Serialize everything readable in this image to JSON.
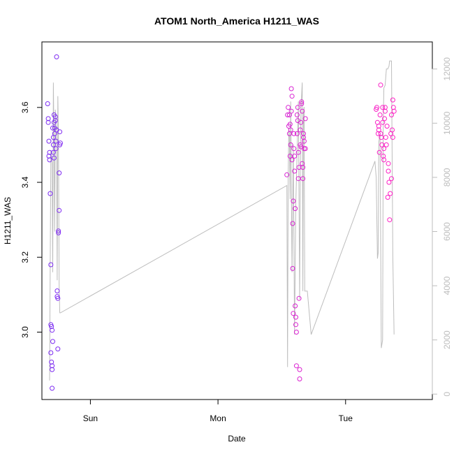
{
  "chart_data": {
    "type": "scatter",
    "title": "ATOM1 North_America H1211_WAS",
    "xlabel": "Date",
    "ylabel": "H1211_WAS",
    "x_unit": "days",
    "xlim": [
      -0.38,
      2.68
    ],
    "ylim": [
      2.82,
      3.775
    ],
    "y2lim": [
      -200,
      13000
    ],
    "x_ticks": [
      {
        "label": "Sun",
        "value": 0
      },
      {
        "label": "Mon",
        "value": 1
      },
      {
        "label": "Tue",
        "value": 2
      }
    ],
    "y_ticks": [
      3.0,
      3.2,
      3.4,
      3.6
    ],
    "y2_ticks": [
      0,
      2000,
      4000,
      6000,
      8000,
      10000,
      12000
    ],
    "grid": false,
    "colors": {
      "start": "#7b2bf3",
      "end": "#ff1fc4",
      "altitude": "#bdbdbd",
      "frame": "#000000"
    },
    "points": [
      [
        -0.335,
        3.61
      ],
      [
        -0.33,
        3.56
      ],
      [
        -0.33,
        3.57
      ],
      [
        -0.325,
        3.47
      ],
      [
        -0.325,
        3.51
      ],
      [
        -0.32,
        3.48
      ],
      [
        -0.32,
        3.46
      ],
      [
        -0.315,
        3.37
      ],
      [
        -0.31,
        3.18
      ],
      [
        -0.31,
        3.02
      ],
      [
        -0.305,
        3.015
      ],
      [
        -0.31,
        2.945
      ],
      [
        -0.305,
        2.92
      ],
      [
        -0.3,
        2.91
      ],
      [
        -0.3,
        2.9
      ],
      [
        -0.3,
        2.85
      ],
      [
        -0.3,
        3.005
      ],
      [
        -0.295,
        2.975
      ],
      [
        -0.295,
        3.545
      ],
      [
        -0.29,
        3.52
      ],
      [
        -0.29,
        3.5
      ],
      [
        -0.29,
        3.48
      ],
      [
        -0.285,
        3.465
      ],
      [
        -0.285,
        3.58
      ],
      [
        -0.285,
        3.56
      ],
      [
        -0.28,
        3.545
      ],
      [
        -0.28,
        3.53
      ],
      [
        -0.275,
        3.575
      ],
      [
        -0.275,
        3.565
      ],
      [
        -0.27,
        3.51
      ],
      [
        -0.27,
        3.49
      ],
      [
        -0.265,
        3.735
      ],
      [
        -0.265,
        3.54
      ],
      [
        -0.26,
        3.095
      ],
      [
        -0.26,
        3.11
      ],
      [
        -0.255,
        3.09
      ],
      [
        -0.255,
        2.955
      ],
      [
        -0.25,
        3.265
      ],
      [
        -0.25,
        3.27
      ],
      [
        -0.245,
        3.325
      ],
      [
        -0.245,
        3.425
      ],
      [
        -0.24,
        3.5
      ],
      [
        -0.235,
        3.505
      ],
      [
        -0.24,
        3.535
      ],
      [
        1.54,
        3.42
      ],
      [
        1.545,
        3.58
      ],
      [
        1.55,
        3.6
      ],
      [
        1.555,
        3.55
      ],
      [
        1.56,
        3.53
      ],
      [
        1.56,
        3.58
      ],
      [
        1.565,
        3.47
      ],
      [
        1.565,
        3.555
      ],
      [
        1.57,
        3.54
      ],
      [
        1.57,
        3.5
      ],
      [
        1.575,
        3.65
      ],
      [
        1.575,
        3.59
      ],
      [
        1.58,
        3.63
      ],
      [
        1.58,
        3.46
      ],
      [
        1.585,
        3.29
      ],
      [
        1.585,
        3.17
      ],
      [
        1.59,
        3.35
      ],
      [
        1.59,
        3.05
      ],
      [
        1.595,
        3.53
      ],
      [
        1.595,
        3.49
      ],
      [
        1.6,
        3.43
      ],
      [
        1.6,
        3.47
      ],
      [
        1.605,
        3.33
      ],
      [
        1.605,
        3.07
      ],
      [
        1.61,
        3.04
      ],
      [
        1.61,
        3.02
      ],
      [
        1.615,
        3.0
      ],
      [
        1.615,
        2.91
      ],
      [
        1.62,
        3.53
      ],
      [
        1.62,
        3.58
      ],
      [
        1.625,
        3.6
      ],
      [
        1.625,
        3.565
      ],
      [
        1.63,
        3.48
      ],
      [
        1.63,
        3.41
      ],
      [
        1.635,
        3.44
      ],
      [
        1.635,
        3.09
      ],
      [
        1.64,
        2.9
      ],
      [
        1.64,
        2.875
      ],
      [
        1.645,
        3.54
      ],
      [
        1.645,
        3.5
      ],
      [
        1.65,
        3.495
      ],
      [
        1.65,
        3.56
      ],
      [
        1.655,
        3.615
      ],
      [
        1.655,
        3.61
      ],
      [
        1.66,
        3.59
      ],
      [
        1.66,
        3.45
      ],
      [
        1.665,
        3.41
      ],
      [
        1.665,
        3.44
      ],
      [
        1.67,
        3.53
      ],
      [
        1.67,
        3.52
      ],
      [
        1.675,
        3.49
      ],
      [
        1.675,
        3.51
      ],
      [
        1.685,
        3.57
      ],
      [
        1.685,
        3.49
      ],
      [
        2.24,
        3.595
      ],
      [
        2.245,
        3.6
      ],
      [
        2.25,
        3.56
      ],
      [
        2.255,
        3.53
      ],
      [
        2.26,
        3.55
      ],
      [
        2.26,
        3.54
      ],
      [
        2.265,
        3.48
      ],
      [
        2.27,
        3.58
      ],
      [
        2.275,
        3.66
      ],
      [
        2.275,
        3.53
      ],
      [
        2.28,
        3.52
      ],
      [
        2.285,
        3.5
      ],
      [
        2.29,
        3.6
      ],
      [
        2.29,
        3.56
      ],
      [
        2.295,
        3.47
      ],
      [
        2.3,
        3.49
      ],
      [
        2.3,
        3.46
      ],
      [
        2.305,
        3.57
      ],
      [
        2.31,
        3.59
      ],
      [
        2.31,
        3.6
      ],
      [
        2.315,
        3.52
      ],
      [
        2.32,
        3.5
      ],
      [
        2.325,
        3.55
      ],
      [
        2.33,
        3.36
      ],
      [
        2.335,
        3.45
      ],
      [
        2.335,
        3.43
      ],
      [
        2.34,
        3.4
      ],
      [
        2.345,
        3.3
      ],
      [
        2.35,
        3.37
      ],
      [
        2.355,
        3.53
      ],
      [
        2.36,
        3.41
      ],
      [
        2.36,
        3.58
      ],
      [
        2.365,
        3.54
      ],
      [
        2.37,
        3.52
      ],
      [
        2.37,
        3.62
      ],
      [
        2.375,
        3.6
      ],
      [
        2.38,
        3.59
      ]
    ],
    "altitude_series": {
      "name": "",
      "x": [
        -0.32,
        -0.31,
        -0.3,
        -0.295,
        -0.29,
        -0.285,
        -0.28,
        -0.275,
        -0.27,
        -0.265,
        -0.26,
        -0.255,
        -0.25,
        -0.245,
        -0.24,
        -0.235,
        1.54,
        1.545,
        1.55,
        1.555,
        1.56,
        1.565,
        1.57,
        1.58,
        1.59,
        1.6,
        1.61,
        1.62,
        1.63,
        1.64,
        1.645,
        1.65,
        1.66,
        1.665,
        1.67,
        1.675,
        1.68,
        1.7,
        1.73,
        2.23,
        2.24,
        2.25,
        2.255,
        2.26,
        2.27,
        2.28,
        2.29,
        2.295,
        2.3,
        2.31,
        2.32,
        2.33,
        2.34,
        2.345,
        2.35,
        2.36,
        2.37,
        2.38
      ],
      "y": [
        500,
        9000,
        8500,
        4500,
        11500,
        9000,
        6000,
        10500,
        10000,
        9000,
        4200,
        11000,
        9500,
        4000,
        3000,
        3000,
        7700,
        1000,
        8000,
        9800,
        9500,
        7200,
        10800,
        4500,
        9200,
        2200,
        7000,
        9000,
        10800,
        3500,
        8000,
        10500,
        11500,
        3800,
        10400,
        10600,
        3800,
        3800,
        2200,
        8600,
        8000,
        5000,
        5200,
        9300,
        9600,
        1700,
        2000,
        10000,
        11300,
        11400,
        12000,
        12000,
        12100,
        12300,
        12300,
        12300,
        5100,
        2200
      ]
    }
  }
}
